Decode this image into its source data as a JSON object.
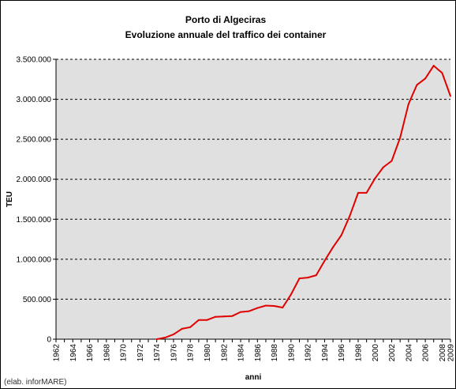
{
  "chart_data": {
    "type": "line",
    "title": "Porto di Algeciras",
    "subtitle": "Evoluzione annuale del traffico dei container",
    "xlabel": "anni",
    "ylabel": "TEU",
    "ylim": [
      0,
      3500000
    ],
    "xlim": [
      1962,
      2009
    ],
    "y_ticks": [
      0,
      500000,
      1000000,
      1500000,
      2000000,
      2500000,
      3000000,
      3500000
    ],
    "y_tick_labels": [
      "0",
      "500.000",
      "1.000.000",
      "1.500.000",
      "2.000.000",
      "2.500.000",
      "3.000.000",
      "3.500.000"
    ],
    "x_ticks": [
      1962,
      1964,
      1966,
      1968,
      1970,
      1972,
      1974,
      1976,
      1978,
      1980,
      1982,
      1984,
      1986,
      1988,
      1990,
      1992,
      1994,
      1996,
      1998,
      2000,
      2002,
      2004,
      2006,
      2008,
      2009
    ],
    "x_tick_labels": [
      "1962",
      "1964",
      "1966",
      "1968",
      "1970",
      "1972",
      "1974",
      "1976",
      "1978",
      "1980",
      "1982",
      "1984",
      "1986",
      "1988",
      "1990",
      "1992",
      "1994",
      "1996",
      "1998",
      "2000",
      "2002",
      "2004",
      "2006",
      "2008",
      "2009"
    ],
    "grid": "horizontal dashed",
    "plot_background": "#e0e0e0",
    "series": [
      {
        "color": "#e00000",
        "x": [
          1974,
          1975,
          1976,
          1977,
          1978,
          1979,
          1980,
          1981,
          1982,
          1983,
          1984,
          1985,
          1986,
          1987,
          1988,
          1989,
          1990,
          1991,
          1992,
          1993,
          1994,
          1995,
          1996,
          1997,
          1998,
          1999,
          2000,
          2001,
          2002,
          2003,
          2004,
          2005,
          2006,
          2007,
          2008,
          2009
        ],
        "values": [
          0,
          20000,
          60000,
          130000,
          150000,
          240000,
          240000,
          280000,
          285000,
          290000,
          340000,
          350000,
          390000,
          420000,
          415000,
          395000,
          560000,
          760000,
          770000,
          800000,
          980000,
          1150000,
          1300000,
          1540000,
          1830000,
          1830000,
          2010000,
          2150000,
          2230000,
          2520000,
          2940000,
          3180000,
          3260000,
          3420000,
          3330000,
          3040000
        ]
      }
    ]
  },
  "credit": "(elab. inforMARE)"
}
